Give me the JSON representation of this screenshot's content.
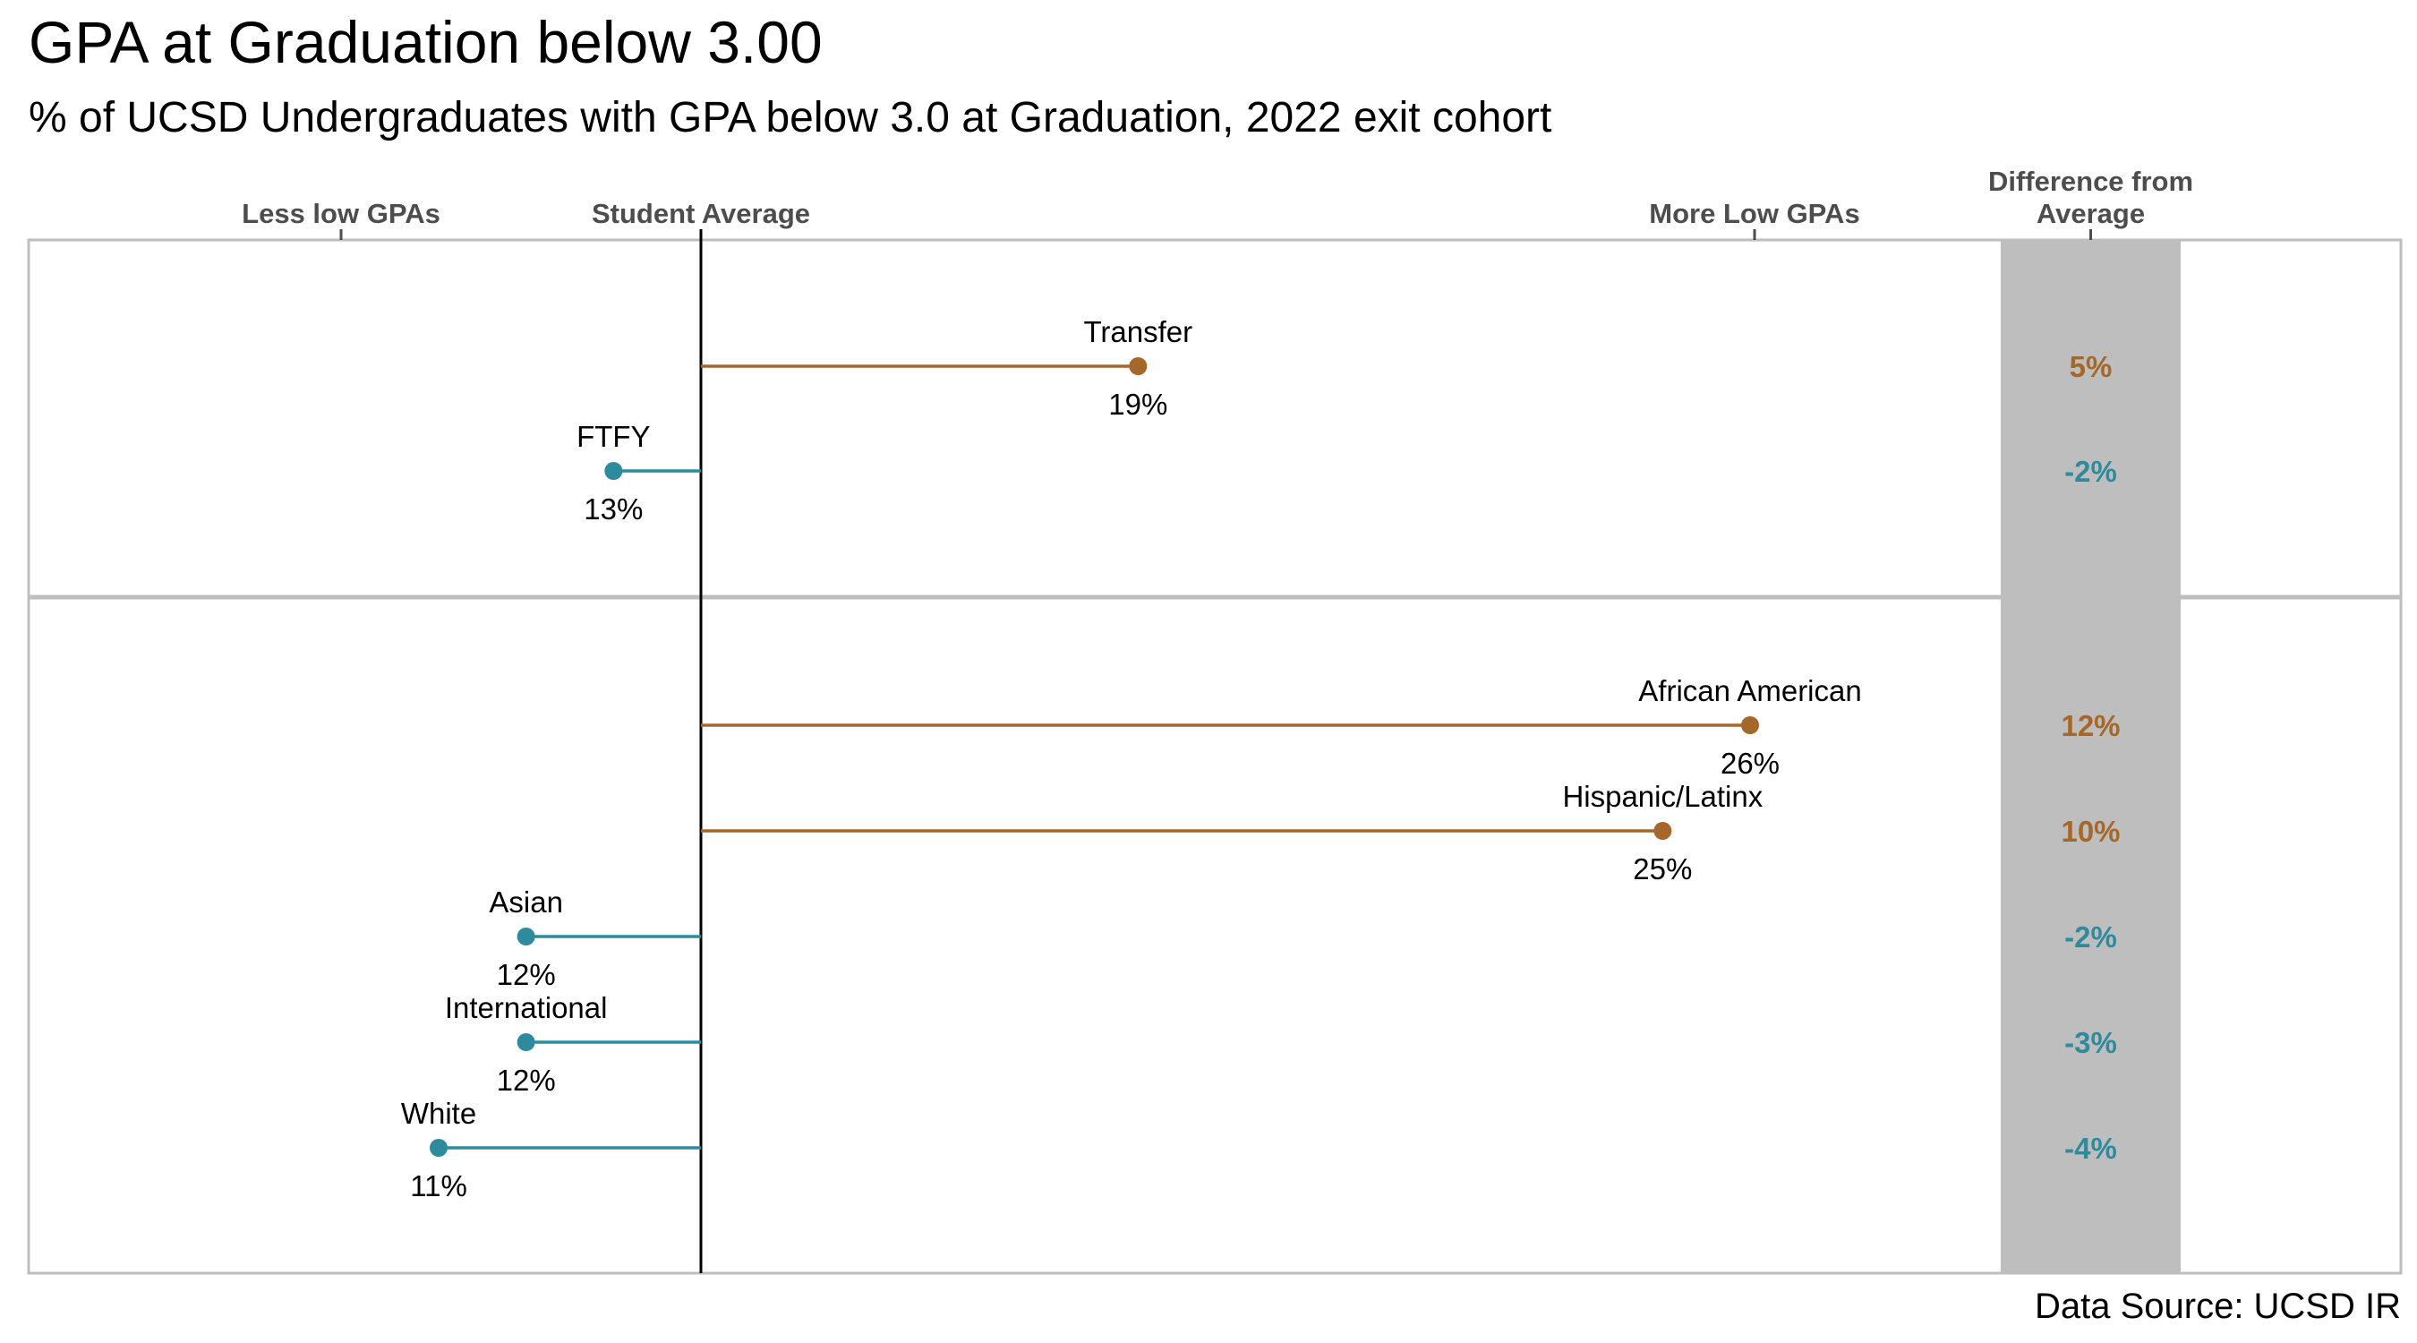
{
  "chart_data": {
    "type": "lollipop",
    "title": "GPA at Graduation below 3.00",
    "subtitle": "% of UCSD Undergraduates with GPA below 3.0 at Graduation, 2022 exit cohort",
    "axis_headers": {
      "left": "Less low GPAs",
      "center": "Student Average",
      "right": "More Low GPAs",
      "diff_line1": "Difference from",
      "diff_line2": "Average"
    },
    "reference_value": 14,
    "x_range": [
      9,
      28
    ],
    "grid": false,
    "colors": {
      "above": "#A5682A",
      "below": "#2E8B9E",
      "diff_band": "#BEBEBE",
      "average_line": "#000000"
    },
    "panels": [
      {
        "points": [
          {
            "name": "Transfer",
            "value": 19,
            "label": "19%",
            "diff": "5%",
            "direction": "above"
          },
          {
            "name": "FTFY",
            "value": 13,
            "label": "13%",
            "diff": "-2%",
            "direction": "below"
          }
        ]
      },
      {
        "points": [
          {
            "name": "African American",
            "value": 26,
            "label": "26%",
            "diff": "12%",
            "direction": "above"
          },
          {
            "name": "Hispanic/Latinx",
            "value": 25,
            "label": "25%",
            "diff": "10%",
            "direction": "above"
          },
          {
            "name": "Asian",
            "value": 12,
            "label": "12%",
            "diff": "-2%",
            "direction": "below"
          },
          {
            "name": "International",
            "value": 12,
            "label": "12%",
            "diff": "-3%",
            "direction": "below"
          },
          {
            "name": "White",
            "value": 11,
            "label": "11%",
            "diff": "-4%",
            "direction": "below"
          }
        ]
      }
    ],
    "source": "Data Source: UCSD IR"
  }
}
